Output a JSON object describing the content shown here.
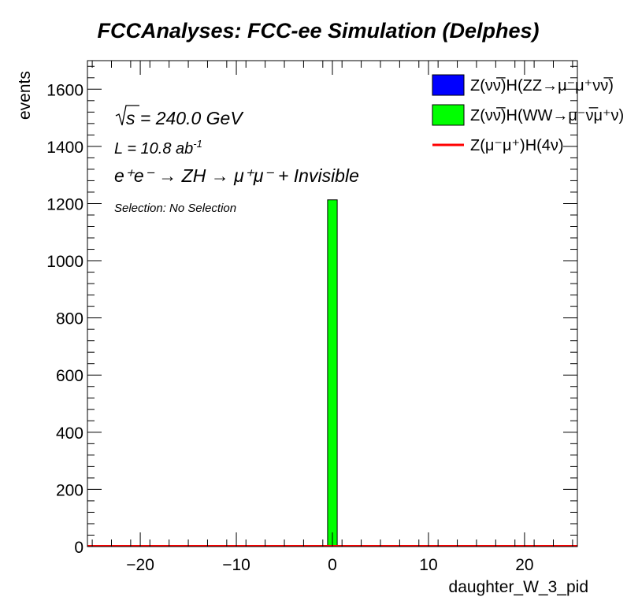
{
  "chart_data": {
    "type": "bar",
    "title": "FCCAnalyses: FCC-ee Simulation (Delphes)",
    "xlabel": "daughter_W_3_pid",
    "ylabel": "events",
    "xlim": [
      -25.5,
      25.5
    ],
    "ylim": [
      0,
      1700
    ],
    "x_ticks": [
      -20,
      -10,
      0,
      10,
      20
    ],
    "x_tick_labels": [
      "−20",
      "−10",
      "0",
      "10",
      "20"
    ],
    "y_ticks": [
      0,
      200,
      400,
      600,
      800,
      1000,
      1200,
      1400,
      1600
    ],
    "y_tick_labels": [
      "0",
      "200",
      "400",
      "600",
      "800",
      "1000",
      "1200",
      "1400",
      "1600"
    ],
    "bin_width": 1,
    "annotations": {
      "sqrt_s": "s",
      "sqrt_s_rest": " = 240.0 GeV",
      "lumi": "L = 10.8 ab",
      "lumi_sup": "-1",
      "process": "e⁺e⁻ → ZH → μ⁺μ⁻ + Invisible",
      "selection": "Selection: No Selection"
    },
    "legend": "top-right",
    "series": [
      {
        "name": "Z(νν̅)H(ZZ→μ⁻μ⁺νν̅)",
        "color": "#0000ff",
        "style": "fill",
        "x": [
          0
        ],
        "values": [
          0
        ]
      },
      {
        "name": "Z(νν̅)H(WW→μ⁻ν̅μ⁺ν)",
        "color": "#00ff00",
        "style": "fill",
        "x": [
          0
        ],
        "values": [
          1213
        ]
      },
      {
        "name": "Z(μ⁻μ⁺)H(4ν)",
        "color": "#ff0000",
        "style": "line",
        "x": [
          0
        ],
        "values": [
          0
        ]
      }
    ]
  }
}
